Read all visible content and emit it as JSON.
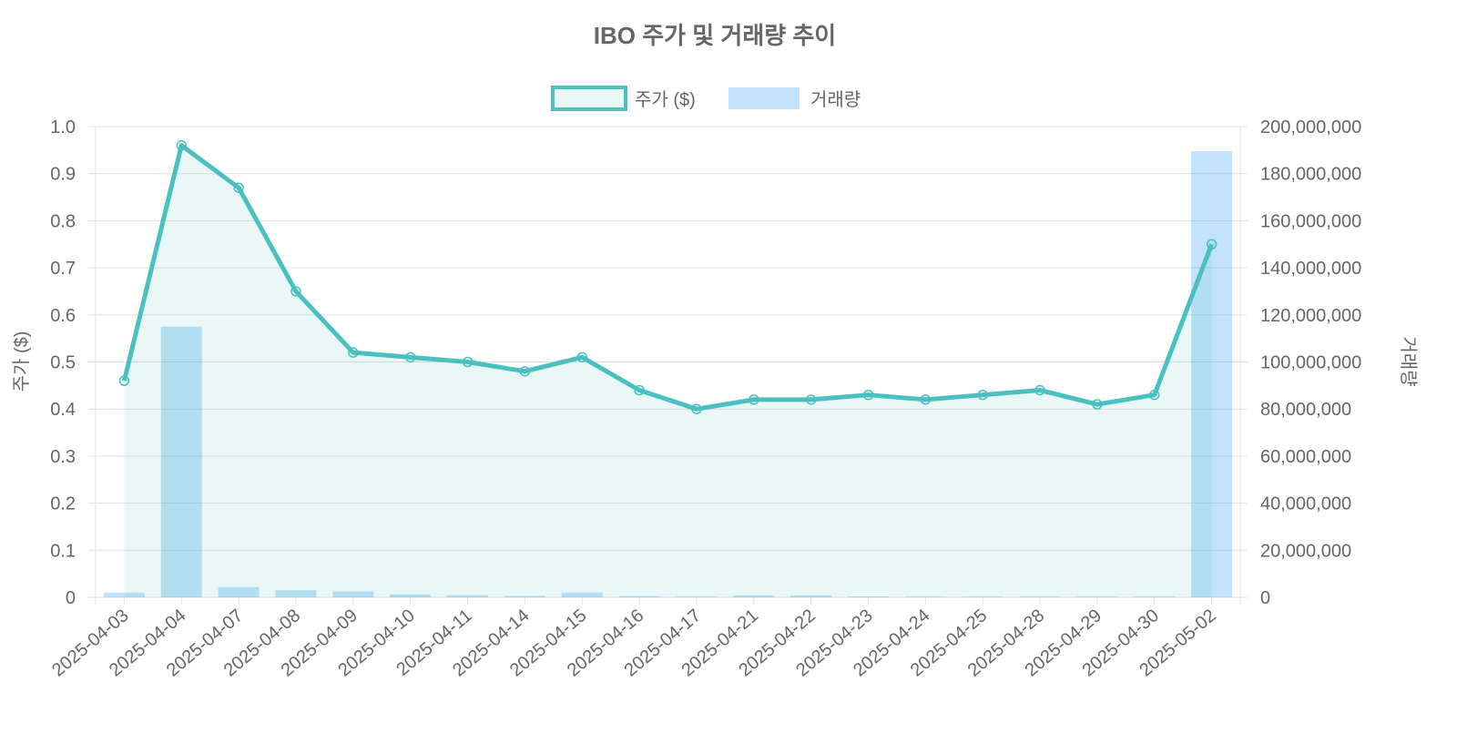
{
  "chart_data": {
    "type": "bar+line",
    "title": "IBO 주가 및 거래량 추이",
    "categories": [
      "2025-04-03",
      "2025-04-04",
      "2025-04-07",
      "2025-04-08",
      "2025-04-09",
      "2025-04-10",
      "2025-04-11",
      "2025-04-14",
      "2025-04-15",
      "2025-04-16",
      "2025-04-17",
      "2025-04-21",
      "2025-04-22",
      "2025-04-23",
      "2025-04-24",
      "2025-04-25",
      "2025-04-28",
      "2025-04-29",
      "2025-04-30",
      "2025-05-02"
    ],
    "series": [
      {
        "name": "주가 ($)",
        "type": "line",
        "axis": "left",
        "color": "#4bc0c0",
        "fill": "rgba(75,192,192,0.12)",
        "values": [
          0.46,
          0.96,
          0.87,
          0.65,
          0.52,
          0.51,
          0.5,
          0.48,
          0.51,
          0.44,
          0.4,
          0.42,
          0.42,
          0.43,
          0.42,
          0.43,
          0.44,
          0.41,
          0.43,
          0.75
        ]
      },
      {
        "name": "거래량",
        "type": "bar",
        "axis": "right",
        "color": "rgba(54,162,235,0.3)",
        "values": [
          2000000,
          115000000,
          4300000,
          3000000,
          2500000,
          1200000,
          900000,
          600000,
          2000000,
          500000,
          300000,
          800000,
          800000,
          400000,
          300000,
          300000,
          300000,
          300000,
          300000,
          189500000
        ]
      }
    ],
    "ylabel": "주가 ($)",
    "y2label": "거래량",
    "ylim": [
      0,
      1.0
    ],
    "y2lim": [
      0,
      200000000
    ],
    "yticks": [
      "0",
      "0.1",
      "0.2",
      "0.3",
      "0.4",
      "0.5",
      "0.6",
      "0.7",
      "0.8",
      "0.9",
      "1.0"
    ],
    "y2ticks": [
      "0",
      "20,000,000",
      "40,000,000",
      "60,000,000",
      "80,000,000",
      "100,000,000",
      "120,000,000",
      "140,000,000",
      "160,000,000",
      "180,000,000",
      "200,000,000"
    ],
    "legend": "top",
    "grid": true
  }
}
